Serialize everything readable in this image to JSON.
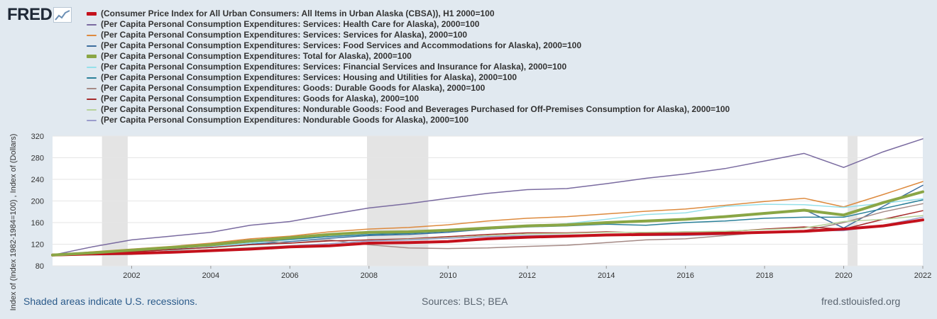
{
  "brand": {
    "name": "FRED",
    "icon": "fred-chart-icon"
  },
  "footer": {
    "recession_note": "Shaded areas indicate U.S. recessions.",
    "sources": "Sources: BLS; BEA",
    "site": "fred.stlouisfed.org"
  },
  "chart_data": {
    "type": "line",
    "ylabel": "Index of (Index 1982-1984=100) , Index of (Dollars)",
    "xlabel": "",
    "ylim": [
      80,
      320
    ],
    "yticks": [
      80,
      120,
      160,
      200,
      240,
      280,
      320
    ],
    "xlim": [
      2000,
      2022
    ],
    "xticks": [
      2002,
      2004,
      2006,
      2008,
      2010,
      2012,
      2014,
      2016,
      2018,
      2020,
      2022
    ],
    "grid": true,
    "legend_position": "top",
    "recessions": [
      [
        2001.25,
        2001.9
      ],
      [
        2007.95,
        2009.5
      ],
      [
        2020.1,
        2020.35
      ]
    ],
    "x": [
      2000,
      2001,
      2002,
      2003,
      2004,
      2005,
      2006,
      2007,
      2008,
      2009,
      2010,
      2011,
      2012,
      2013,
      2014,
      2015,
      2016,
      2017,
      2018,
      2019,
      2020,
      2021,
      2022
    ],
    "series": [
      {
        "name": "(Consumer Price Index for All Urban Consumers: All Items in Urban Alaska (CBSA)), H1 2000=100",
        "color": "#c4111c",
        "width": 4,
        "values": [
          100,
          102,
          103,
          105,
          108,
          111,
          115,
          117,
          122,
          123,
          125,
          130,
          133,
          135,
          137,
          138,
          139,
          140,
          142,
          144,
          148,
          154,
          165
        ]
      },
      {
        "name": "(Per Capita Personal Consumption Expenditures: Services: Health Care for Alaska), 2000=100",
        "color": "#7a6ba0",
        "width": 1.5,
        "values": [
          100,
          115,
          128,
          135,
          142,
          155,
          162,
          175,
          187,
          195,
          205,
          214,
          221,
          223,
          232,
          242,
          250,
          260,
          274,
          288,
          262,
          291,
          315
        ]
      },
      {
        "name": "(Per Capita Personal Consumption Expenditures: Services: Services for Alaska), 2000=100",
        "color": "#dd8a3e",
        "width": 1.5,
        "values": [
          100,
          106,
          111,
          116,
          122,
          130,
          135,
          143,
          148,
          151,
          156,
          163,
          168,
          171,
          176,
          181,
          185,
          192,
          199,
          205,
          189,
          212,
          236
        ]
      },
      {
        "name": "(Per Capita Personal Consumption Expenditures: Services: Food Services and Accommodations for Alaska), 2000=100",
        "color": "#3d6e9e",
        "width": 1.5,
        "values": [
          100,
          103,
          106,
          110,
          114,
          120,
          125,
          131,
          136,
          138,
          142,
          148,
          153,
          156,
          160,
          163,
          167,
          171,
          177,
          184,
          150,
          190,
          229
        ]
      },
      {
        "name": "(Per Capita Personal Consumption Expenditures: Total for Alaska), 2000=100",
        "color": "#8aa645",
        "width": 4,
        "values": [
          100,
          104,
          109,
          114,
          119,
          126,
          132,
          138,
          142,
          143,
          146,
          150,
          154,
          156,
          160,
          163,
          166,
          171,
          177,
          183,
          174,
          197,
          217
        ]
      },
      {
        "name": "(Per Capita Personal Consumption Expenditures: Services: Financial Services and Insurance for Alaska), 2000=100",
        "color": "#95e0ea",
        "width": 1.5,
        "values": [
          100,
          100,
          101,
          108,
          115,
          122,
          128,
          134,
          138,
          140,
          144,
          150,
          154,
          158,
          166,
          175,
          178,
          190,
          194,
          193,
          188,
          196,
          204
        ]
      },
      {
        "name": "(Per Capita Personal Consumption Expenditures: Services: Housing and Utilities for Alaska), 2000=100",
        "color": "#2a8099",
        "width": 1.5,
        "values": [
          100,
          104,
          108,
          112,
          117,
          124,
          129,
          134,
          138,
          140,
          144,
          148,
          152,
          154,
          157,
          155,
          160,
          163,
          168,
          170,
          170,
          186,
          202
        ]
      },
      {
        "name": "(Per Capita Personal Consumption Expenditures: Goods: Durable Goods for Alaska), 2000=100",
        "color": "#a58a86",
        "width": 1.5,
        "values": [
          100,
          105,
          110,
          115,
          120,
          128,
          122,
          128,
          119,
          113,
          112,
          113,
          116,
          118,
          123,
          128,
          130,
          136,
          142,
          145,
          160,
          180,
          195
        ]
      },
      {
        "name": "(Per Capita Personal Consumption Expenditures: Goods for Alaska), 2000=100",
        "color": "#a52a2a",
        "width": 1.5,
        "values": [
          100,
          103,
          106,
          110,
          114,
          119,
          122,
          126,
          128,
          130,
          134,
          138,
          141,
          141,
          143,
          141,
          143,
          143,
          148,
          152,
          148,
          166,
          182
        ]
      },
      {
        "name": "(Per Capita Personal Consumption Expenditures: Nondurable Goods: Food and Beverages Purchased for Off-Premises Consumption for Alaska), 2000=100",
        "color": "#b7d29a",
        "width": 1.5,
        "values": [
          100,
          102,
          104,
          107,
          110,
          114,
          117,
          121,
          126,
          129,
          132,
          136,
          139,
          140,
          142,
          142,
          143,
          144,
          147,
          150,
          162,
          166,
          173
        ]
      },
      {
        "name": "(Per Capita Personal Consumption Expenditures: Nondurable Goods for Alaska), 2000=100",
        "color": "#9a9ccc",
        "width": 1.5,
        "values": [
          100,
          101,
          103,
          106,
          109,
          113,
          117,
          121,
          126,
          128,
          131,
          134,
          136,
          137,
          138,
          136,
          136,
          138,
          142,
          145,
          145,
          155,
          170
        ]
      }
    ]
  }
}
